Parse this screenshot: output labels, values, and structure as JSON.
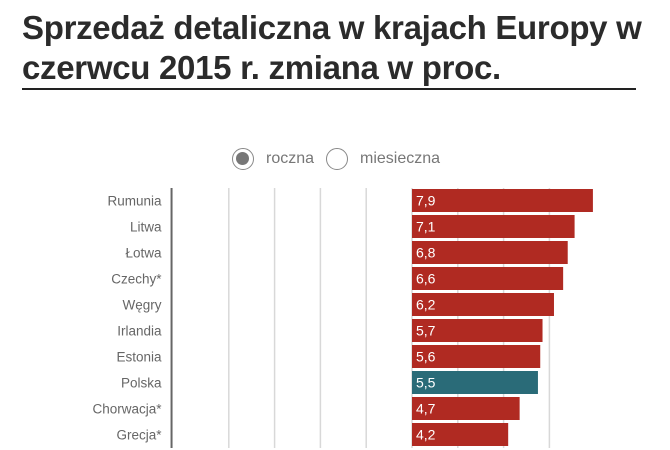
{
  "title": "Sprzedaż detaliczna w krajach Europy w czerwcu 2015 r. zmiana w proc.",
  "toggle": {
    "options": [
      "roczna",
      "miesieczna"
    ],
    "selected": "roczna"
  },
  "chart_data": {
    "type": "bar",
    "orientation": "horizontal",
    "categories": [
      "Rumunia",
      "Litwa",
      "Łotwa",
      "Czechy*",
      "Węgry",
      "Irlandia",
      "Estonia",
      "Polska",
      "Chorwacja*",
      "Grecja*"
    ],
    "values": [
      7.9,
      7.1,
      6.8,
      6.6,
      6.2,
      5.7,
      5.6,
      5.5,
      4.7,
      4.2
    ],
    "value_labels": [
      "7,9",
      "7,1",
      "6,8",
      "6,6",
      "6,2",
      "5,7",
      "5,6",
      "5,5",
      "4,7",
      "4,2"
    ],
    "xlim": [
      -10.5,
      10
    ],
    "gridlines": [
      -8,
      -6,
      -4,
      -2,
      0,
      2,
      4,
      6,
      8
    ],
    "grid": true,
    "colors": {
      "default": "#b02a22",
      "highlight": "#2a6b78",
      "highlight_category": "Polska"
    }
  }
}
